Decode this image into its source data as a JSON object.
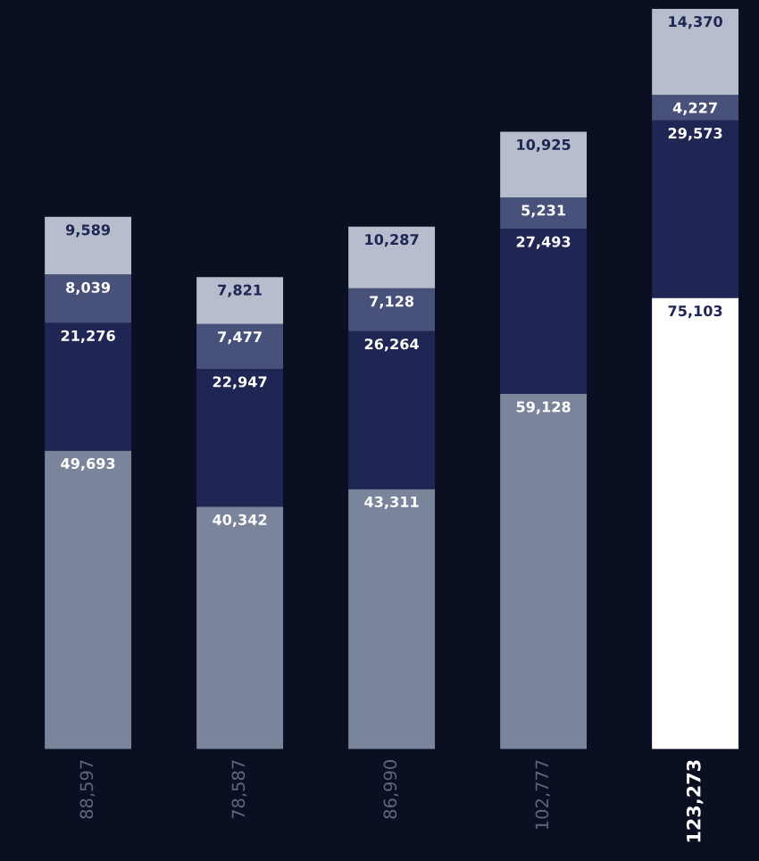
{
  "chart_data": {
    "type": "bar",
    "stacked": true,
    "categories": [
      null,
      null,
      null,
      null,
      null
    ],
    "series": [
      {
        "colors": [
          "#7a859c",
          "#7a859c",
          "#7a859c",
          "#7a859c",
          "#ffffff"
        ],
        "values": [
          49693,
          40342,
          43311,
          59128,
          75103
        ],
        "value_labels": [
          "49,693",
          "40,342",
          "43,311",
          "59,128",
          "75,103"
        ]
      },
      {
        "color": "#1f2653",
        "values": [
          21276,
          22947,
          26264,
          27493,
          29573
        ],
        "value_labels": [
          "21,276",
          "22,947",
          "26,264",
          "27,493",
          "29,573"
        ]
      },
      {
        "color": "#48517a",
        "values": [
          8039,
          7477,
          7128,
          5231,
          4227
        ],
        "value_labels": [
          "8,039",
          "7,477",
          "7,128",
          "5,231",
          "4,227"
        ]
      },
      {
        "color": "#b6bdcc",
        "values": [
          9589,
          7821,
          10287,
          10925,
          14370
        ],
        "value_labels": [
          "9,589",
          "7,821",
          "10,287",
          "10,925",
          "14,370"
        ]
      }
    ],
    "totals": [
      "88,597",
      "78,587",
      "86,990",
      "102,777",
      "123,273"
    ],
    "grid": false,
    "legend": false
  }
}
